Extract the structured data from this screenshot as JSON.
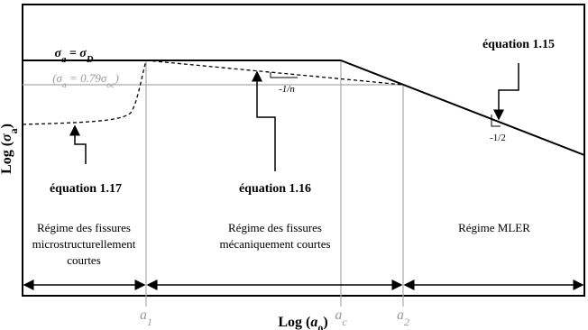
{
  "curve_labels": {
    "endurance": [
      {
        "text": "σ"
      },
      {
        "text": "a",
        "sub": true
      },
      {
        "text": " = σ"
      },
      {
        "text": "D",
        "sub": true
      }
    ],
    "threshold": [
      {
        "text": "(σ"
      },
      {
        "text": "a",
        "sub": true
      },
      {
        "text": " = 0.79σ"
      },
      {
        "text": "oc",
        "sub": true
      },
      {
        "text": ")"
      }
    ],
    "slope_n": "-1/n",
    "slope_half": "-1/2"
  },
  "equations": {
    "eq15": "équation 1.15",
    "eq17": "équation 1.17",
    "eq16": "équation 1.16"
  },
  "regions": [
    {
      "lines": [
        "Régime des fissures",
        "microstructurellement",
        "courtes"
      ]
    },
    {
      "lines": [
        "Régime des fissures",
        "mécaniquement courtes"
      ]
    },
    {
      "lines": [
        "Régime MLER"
      ]
    }
  ],
  "axes": {
    "y_label": [
      {
        "text": "Log ("
      },
      {
        "text": "σ",
        "it": true
      },
      {
        "text": "a",
        "sub": true
      },
      {
        "text": ")"
      }
    ],
    "x_label": [
      {
        "text": "Log ("
      },
      {
        "text": "a",
        "it": true
      },
      {
        "text": "0",
        "sub": true
      },
      {
        "text": ")"
      }
    ],
    "x_ticks": [
      [
        {
          "text": "a"
        },
        {
          "text": "1",
          "sub": true
        }
      ],
      [
        {
          "text": "a"
        },
        {
          "text": "c",
          "sub": true
        }
      ],
      [
        {
          "text": "a"
        },
        {
          "text": "2",
          "sub": true
        }
      ]
    ]
  }
}
